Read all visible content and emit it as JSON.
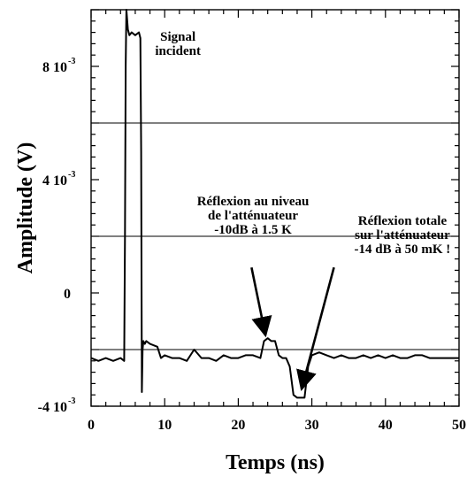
{
  "chart_data": {
    "type": "line",
    "xlabel": "Temps (ns)",
    "ylabel": "Amplitude (V)",
    "xlim": [
      0,
      50
    ],
    "ylim": [
      -0.004,
      0.01
    ],
    "x_ticks": [
      {
        "value": 0,
        "label": "0"
      },
      {
        "value": 10,
        "label": "10"
      },
      {
        "value": 20,
        "label": "20"
      },
      {
        "value": 30,
        "label": "30"
      },
      {
        "value": 40,
        "label": "40"
      },
      {
        "value": 50,
        "label": "50"
      }
    ],
    "y_ticks": [
      {
        "value": -0.004,
        "label": "-4 10",
        "exp": "-3"
      },
      {
        "value": 0,
        "label": "0",
        "exp": ""
      },
      {
        "value": 0.004,
        "label": "4 10",
        "exp": "-3"
      },
      {
        "value": 0.008,
        "label": "8 10",
        "exp": "-3"
      }
    ],
    "horizontal_gridlines": [
      -0.002,
      0.002,
      0.006
    ],
    "series": [
      {
        "x": [
          0,
          1,
          2,
          3,
          4,
          4.5,
          4.6,
          4.7,
          4.8,
          5.0,
          5.2,
          5.5,
          6.0,
          6.5,
          6.7,
          6.8,
          6.9,
          7.0,
          7.1,
          7.3,
          7.5,
          8,
          9,
          9.5,
          10,
          11,
          12,
          13,
          14,
          15,
          16,
          17,
          18,
          19,
          20,
          21,
          22,
          23,
          23.5,
          24,
          24.5,
          25,
          25.5,
          26,
          26.5,
          27,
          27.5,
          28,
          29,
          29.5,
          30,
          31,
          32,
          33,
          34,
          35,
          36,
          37,
          38,
          39,
          40,
          41,
          42,
          43,
          44,
          45,
          46,
          47,
          48,
          49,
          50
        ],
        "y": [
          -0.0023,
          -0.0024,
          -0.0023,
          -0.0024,
          -0.0023,
          -0.0024,
          0.002,
          0.008,
          0.01,
          0.0093,
          0.0091,
          0.0092,
          0.0091,
          0.0092,
          0.009,
          0.005,
          -0.0035,
          -0.002,
          -0.0017,
          -0.0018,
          -0.0017,
          -0.0018,
          -0.0019,
          -0.0023,
          -0.0022,
          -0.0023,
          -0.0023,
          -0.0024,
          -0.002,
          -0.0023,
          -0.0023,
          -0.0024,
          -0.0022,
          -0.0023,
          -0.0023,
          -0.0022,
          -0.0022,
          -0.0023,
          -0.0017,
          -0.0016,
          -0.0017,
          -0.0017,
          -0.0022,
          -0.0023,
          -0.0023,
          -0.0026,
          -0.0036,
          -0.0037,
          -0.0037,
          -0.0026,
          -0.0022,
          -0.0021,
          -0.0022,
          -0.0023,
          -0.0022,
          -0.0023,
          -0.0023,
          -0.0022,
          -0.0023,
          -0.0022,
          -0.0023,
          -0.0022,
          -0.0023,
          -0.0023,
          -0.0022,
          -0.0022,
          -0.0023,
          -0.0023,
          -0.0023,
          -0.0023,
          -0.0023
        ]
      }
    ],
    "annotations": [
      {
        "lines": [
          "Signal",
          "incident"
        ],
        "x": 11.8,
        "y": 0.0089
      },
      {
        "lines": [
          "Réflexion au niveau",
          "de l'atténuateur",
          "-10dB à 1.5 K"
        ],
        "x": 22.0,
        "y": 0.0031
      },
      {
        "lines": [
          "Réflexion totale",
          "sur l'atténuateur",
          "-14 dB à 50 mK !"
        ],
        "x": 42.3,
        "y": 0.0024
      }
    ],
    "arrows": [
      {
        "from": [
          21.8,
          0.0009
        ],
        "to": [
          23.7,
          -0.0015
        ]
      },
      {
        "from": [
          33.0,
          0.0009
        ],
        "to": [
          28.6,
          -0.0034
        ]
      }
    ],
    "grid": false,
    "legend": "none"
  }
}
